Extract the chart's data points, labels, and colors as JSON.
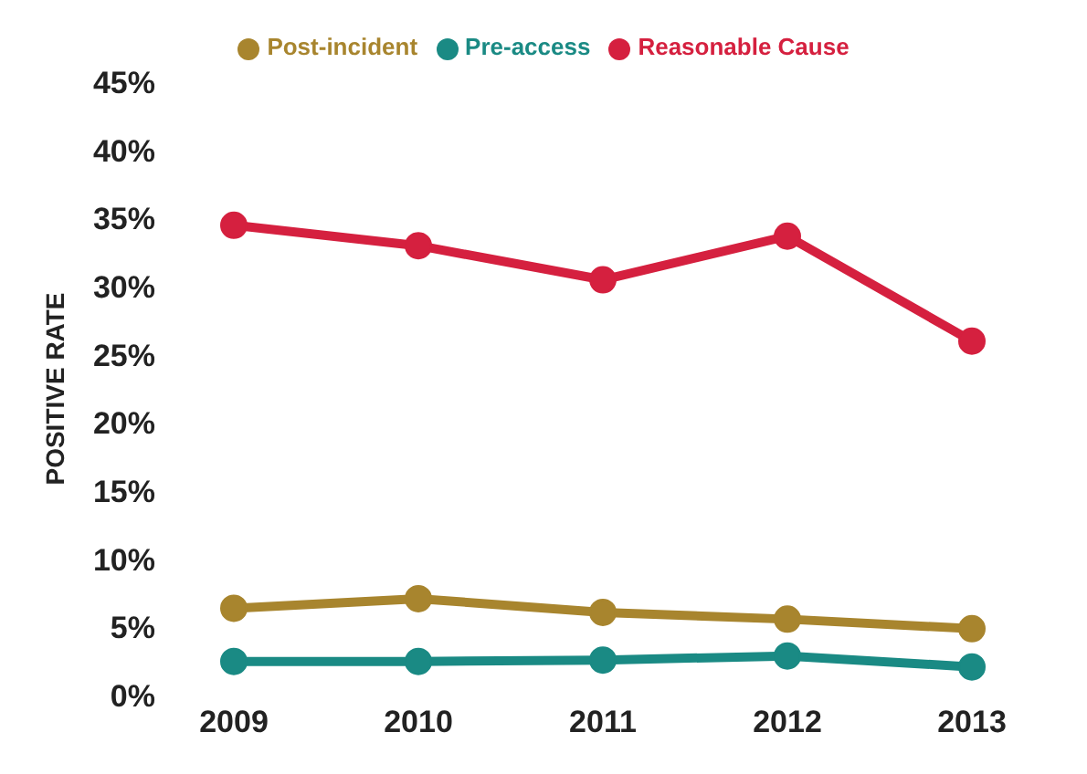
{
  "chart_data": {
    "type": "line",
    "ylabel": "POSITIVE RATE",
    "categories": [
      "2009",
      "2010",
      "2011",
      "2012",
      "2013"
    ],
    "series": [
      {
        "name": "Pre-access",
        "color": "#1a8a84",
        "values": [
          2.5,
          2.5,
          2.6,
          2.9,
          2.1
        ]
      },
      {
        "name": "Post-incident",
        "color": "#a8852e",
        "values": [
          6.4,
          7.1,
          6.1,
          5.6,
          4.9
        ]
      },
      {
        "name": "Reasonable Cause",
        "color": "#d5203f",
        "values": [
          34.5,
          33,
          30.5,
          33.7,
          26
        ]
      }
    ],
    "ylim": [
      0,
      45
    ],
    "yticks": [
      {
        "value": 0,
        "label": "0%"
      },
      {
        "value": 5,
        "label": "5%"
      },
      {
        "value": 10,
        "label": "10%"
      },
      {
        "value": 15,
        "label": "15%"
      },
      {
        "value": 20,
        "label": "20%"
      },
      {
        "value": 25,
        "label": "25%"
      },
      {
        "value": 30,
        "label": "30%"
      },
      {
        "value": 35,
        "label": "35%"
      },
      {
        "value": 40,
        "label": "40%"
      },
      {
        "value": 45,
        "label": "45%"
      }
    ],
    "grid": false,
    "legend": "top",
    "marker": "circle",
    "line_style": "solid"
  }
}
